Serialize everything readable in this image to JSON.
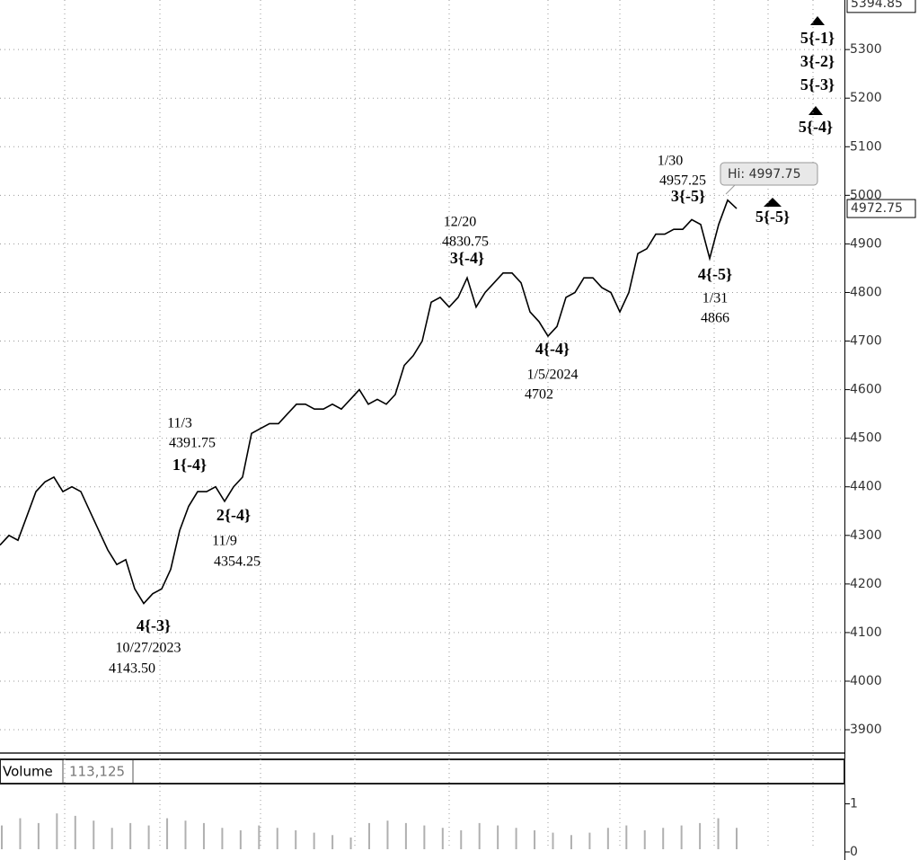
{
  "chart_data": [
    {
      "type": "line",
      "categories": [
        null,
        null,
        null,
        null,
        null,
        null,
        null,
        null,
        null,
        null,
        null,
        null,
        null,
        null,
        null,
        null,
        null,
        null,
        null,
        null,
        null,
        null,
        null,
        null,
        null,
        null,
        null,
        null,
        null,
        null,
        null,
        null,
        null,
        null,
        null,
        null,
        null,
        null,
        null,
        null,
        null,
        null,
        null,
        null,
        null,
        null,
        null,
        null,
        null,
        null,
        null,
        null,
        null,
        null,
        null,
        null,
        null,
        null,
        null,
        null,
        null,
        null,
        null,
        null,
        null,
        null,
        null,
        null,
        null,
        null,
        null,
        null,
        null,
        null,
        null,
        null,
        null,
        null,
        null,
        null,
        null,
        null,
        null
      ],
      "series": [
        {
          "color": "#000000",
          "values": [
            4280,
            4300,
            4290,
            4340,
            4390,
            4410,
            4420,
            4390,
            4400,
            4390,
            4350,
            4310,
            4270,
            4240,
            4250,
            4190,
            4160,
            4180,
            4190,
            4230,
            4310,
            4360,
            4390,
            4390,
            4400,
            4370,
            4400,
            4420,
            4510,
            4520,
            4530,
            4530,
            4550,
            4570,
            4570,
            4560,
            4560,
            4570,
            4560,
            4580,
            4600,
            4570,
            4580,
            4570,
            4590,
            4650,
            4670,
            4700,
            4780,
            4790,
            4770,
            4790,
            4830,
            4770,
            4800,
            4820,
            4840,
            4840,
            4820,
            4760,
            4740,
            4710,
            4730,
            4790,
            4800,
            4830,
            4830,
            4810,
            4800,
            4760,
            4800,
            4880,
            4890,
            4920,
            4920,
            4930,
            4930,
            4950,
            4940,
            4870,
            4940,
            4990,
            4972.75
          ]
        }
      ],
      "ylim": [
        3852,
        5402
      ],
      "yticks": [
        3900,
        4000,
        4100,
        4200,
        4300,
        4400,
        4500,
        4600,
        4700,
        4800,
        4900,
        5000,
        5100,
        5200,
        5300
      ],
      "grid": true,
      "top_price": 5394.85,
      "last_price": 4972.75,
      "high_label": "Hi: 4997.75",
      "annotations": [
        "5{-1}",
        "3{-2}",
        "5{-3}",
        "5{-4}",
        "1/30",
        "4957.25",
        "3{-5}",
        "5{-5}",
        "4{-5}",
        "1/31",
        "4866",
        "12/20",
        "4830.75",
        "3{-4}",
        "4{-4}",
        "1/5/2024",
        "4702",
        "11/3",
        "4391.75",
        "1{-4}",
        "2{-4}",
        "11/9",
        "4354.25",
        "4{-3}",
        "10/27/2023",
        "4143.50"
      ]
    },
    {
      "type": "bar",
      "title": "Volume",
      "readout": "113,125",
      "color": "#b0b0b0",
      "categories": [
        null,
        null,
        null,
        null,
        null,
        null,
        null,
        null,
        null,
        null,
        null,
        null,
        null,
        null,
        null,
        null,
        null,
        null,
        null,
        null,
        null,
        null,
        null,
        null,
        null,
        null,
        null,
        null,
        null,
        null,
        null,
        null,
        null,
        null,
        null,
        null,
        null,
        null,
        null,
        null,
        null
      ],
      "values": [
        0.55,
        0.7,
        0.6,
        0.8,
        0.75,
        0.65,
        0.5,
        0.6,
        0.55,
        0.7,
        0.65,
        0.6,
        0.5,
        0.45,
        0.55,
        0.5,
        0.45,
        0.4,
        0.35,
        0.3,
        0.6,
        0.65,
        0.6,
        0.55,
        0.5,
        0.45,
        0.6,
        0.55,
        0.5,
        0.45,
        0.4,
        0.35,
        0.4,
        0.5,
        0.55,
        0.45,
        0.5,
        0.55,
        0.6,
        0.7,
        0.5
      ],
      "ylim": [
        0,
        1.42
      ],
      "yticks": [
        0,
        1
      ]
    }
  ]
}
